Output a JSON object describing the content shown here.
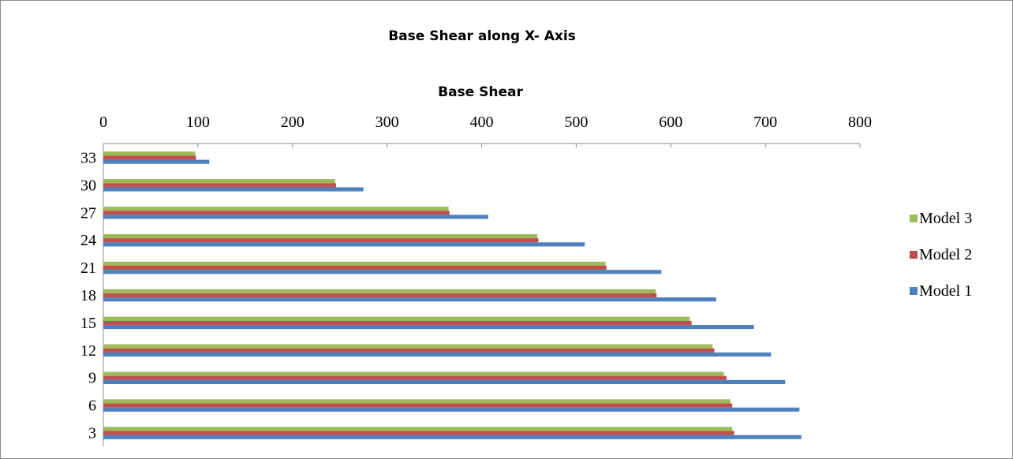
{
  "chart_data": {
    "type": "bar",
    "orientation": "horizontal",
    "title": "Base Shear along X- Axis",
    "xlabel": "Base Shear",
    "ylabel": "",
    "x_axis_position": "top",
    "xlim": [
      0,
      800
    ],
    "x_ticks": [
      0,
      100,
      200,
      300,
      400,
      500,
      600,
      700,
      800
    ],
    "categories": [
      "3",
      "6",
      "9",
      "12",
      "15",
      "18",
      "21",
      "24",
      "27",
      "30",
      "33"
    ],
    "series": [
      {
        "name": "Model 1",
        "color": "#4f81bd",
        "values": [
          738,
          736,
          721,
          706,
          688,
          648,
          590,
          509,
          407,
          275,
          112
        ]
      },
      {
        "name": "Model 2",
        "color": "#c0504d",
        "values": [
          667,
          665,
          659,
          646,
          622,
          585,
          532,
          460,
          366,
          246,
          98
        ]
      },
      {
        "name": "Model 3",
        "color": "#9bbb59",
        "values": [
          665,
          663,
          656,
          644,
          620,
          584,
          531,
          459,
          365,
          245,
          97
        ]
      }
    ],
    "legend": {
      "position": "right",
      "entries": [
        "Model 3",
        "Model 2",
        "Model 1"
      ]
    },
    "grid": false
  }
}
